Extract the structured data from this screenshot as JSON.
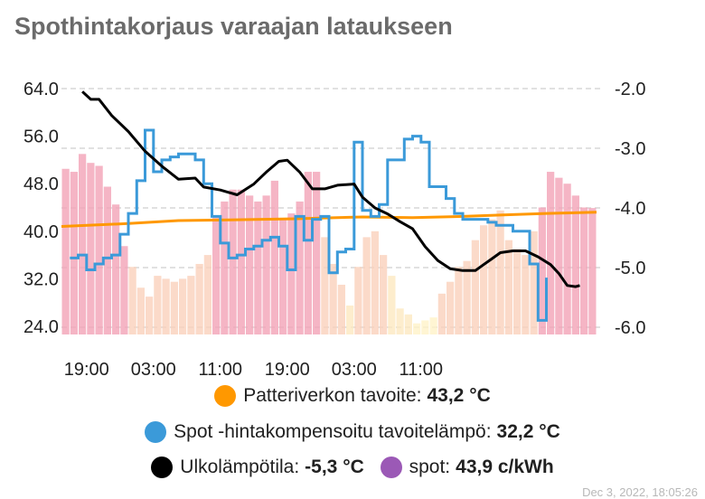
{
  "card": {
    "title": "Spothintakorjaus varaajan lataukseen",
    "footer": "Dec 3, 2022, 18:05:26"
  },
  "chart_data": {
    "type": "line",
    "x_ticks": [
      "19:00",
      "03:00",
      "11:00",
      "19:00",
      "03:00",
      "11:00"
    ],
    "x_range": [
      0,
      64
    ],
    "x_tick_positions": [
      3,
      11,
      19,
      27,
      35,
      43
    ],
    "left_axis": {
      "ticks": [
        "64.0",
        "56.0",
        "48.0",
        "40.0",
        "32.0",
        "24.0"
      ],
      "range": [
        24,
        64
      ]
    },
    "right_axis": {
      "ticks": [
        "-2.0",
        "-3.0",
        "-4.0",
        "-5.0",
        "-6.0"
      ],
      "range": [
        -6,
        -2
      ]
    },
    "grid": true,
    "series": [
      {
        "name": "spot",
        "unit": "c/kWh",
        "axis": "left",
        "style": "bars",
        "values": [
          50.5,
          50,
          53,
          51.5,
          51,
          47.5,
          44.5,
          37.5,
          34,
          30.5,
          29,
          32.5,
          32,
          31.5,
          32,
          32.5,
          34.5,
          36,
          42.5,
          45,
          47,
          47,
          46,
          45,
          46,
          48.5,
          42,
          43,
          45,
          50,
          50,
          39,
          34.5,
          31,
          27.5,
          34,
          39,
          40,
          36,
          32.5,
          27,
          26,
          24.5,
          25,
          25.5,
          29.5,
          31.5,
          34,
          35,
          38.5,
          41,
          42,
          43.5,
          38.5,
          37,
          36,
          40,
          44,
          50,
          49,
          48,
          46,
          44,
          43.9
        ],
        "colors": [
          "#f2a3b6",
          "#f2a3b6",
          "#f2a3b6",
          "#f2a3b6",
          "#f2a3b6",
          "#f2a3b6",
          "#f2a3b6",
          "#f2a3b6",
          "#fad1bb",
          "#fad1bb",
          "#fad1bb",
          "#fad1bb",
          "#fad1bb",
          "#fad1bb",
          "#fad1bb",
          "#fad1bb",
          "#fad1bb",
          "#fad1bb",
          "#f2a3b6",
          "#f2a3b6",
          "#f2a3b6",
          "#f2a3b6",
          "#f2a3b6",
          "#f2a3b6",
          "#f2a3b6",
          "#f2a3b6",
          "#f2a3b6",
          "#f2a3b6",
          "#f2a3b6",
          "#f2a3b6",
          "#f2a3b6",
          "#fad1bb",
          "#fad1bb",
          "#fad1bb",
          "#fde8c0",
          "#fad1bb",
          "#fad1bb",
          "#fad1bb",
          "#fad1bb",
          "#fde8c0",
          "#fde8c0",
          "#fde8c0",
          "#fff3c8",
          "#fff3c8",
          "#fff3c8",
          "#fad1bb",
          "#fad1bb",
          "#fad1bb",
          "#fad1bb",
          "#fad1bb",
          "#fad1bb",
          "#fad1bb",
          "#fad1bb",
          "#fad1bb",
          "#fad1bb",
          "#fad1bb",
          "#fad1bb",
          "#f2a3b6",
          "#f2a3b6",
          "#f2a3b6",
          "#f2a3b6",
          "#f2a3b6",
          "#f2a3b6",
          "#f2a3b6"
        ]
      },
      {
        "name": "Patteriverkon tavoite",
        "unit": "°C",
        "axis": "left",
        "style": "line",
        "color": "#ff9800",
        "points": [
          [
            0,
            40.8
          ],
          [
            8,
            41.3
          ],
          [
            14,
            41.8
          ],
          [
            20,
            41.9
          ],
          [
            28,
            42.1
          ],
          [
            36,
            42.4
          ],
          [
            42,
            42.3
          ],
          [
            48,
            42.5
          ],
          [
            54,
            42.8
          ],
          [
            58,
            43.0
          ],
          [
            64,
            43.2
          ]
        ]
      },
      {
        "name": "Spot -hintakompensoitu tavoitelämpö",
        "unit": "°C",
        "axis": "left",
        "style": "step",
        "color": "#3b9ad9",
        "points": [
          [
            1,
            35.5
          ],
          [
            2,
            36
          ],
          [
            3,
            33.5
          ],
          [
            4,
            34.5
          ],
          [
            5,
            35.5
          ],
          [
            6,
            36
          ],
          [
            7,
            39.5
          ],
          [
            8,
            43
          ],
          [
            9,
            48.5
          ],
          [
            10,
            57
          ],
          [
            11,
            50
          ],
          [
            12,
            52
          ],
          [
            13,
            52.5
          ],
          [
            14,
            53
          ],
          [
            15,
            53
          ],
          [
            16,
            52
          ],
          [
            17,
            48
          ],
          [
            18,
            42.5
          ],
          [
            19,
            38
          ],
          [
            20,
            35.5
          ],
          [
            21,
            36
          ],
          [
            22,
            37
          ],
          [
            23,
            37.5
          ],
          [
            24,
            38.5
          ],
          [
            25,
            39
          ],
          [
            26,
            37.5
          ],
          [
            27,
            33.5
          ],
          [
            28,
            42.5
          ],
          [
            29,
            38.5
          ],
          [
            30,
            42
          ],
          [
            31,
            42.5
          ],
          [
            32,
            33
          ],
          [
            33,
            36.5
          ],
          [
            34,
            37
          ],
          [
            35,
            55
          ],
          [
            36,
            43.5
          ],
          [
            37,
            42.5
          ],
          [
            38,
            44.5
          ],
          [
            39,
            52
          ],
          [
            40,
            52
          ],
          [
            41,
            55.5
          ],
          [
            42,
            56
          ],
          [
            43,
            55
          ],
          [
            44,
            47.5
          ],
          [
            45,
            47.5
          ],
          [
            46,
            45.5
          ],
          [
            47,
            43
          ],
          [
            48,
            42
          ],
          [
            49,
            42
          ],
          [
            50,
            42
          ],
          [
            51,
            41.5
          ],
          [
            52,
            41
          ],
          [
            53,
            41
          ],
          [
            54,
            40
          ],
          [
            55,
            40
          ],
          [
            56,
            34.5
          ],
          [
            57,
            25
          ],
          [
            58,
            32.2
          ]
        ]
      },
      {
        "name": "Ulkolämpötila",
        "unit": "°C",
        "axis": "right",
        "style": "line",
        "color": "#000000",
        "points": [
          [
            2.5,
            -2.05
          ],
          [
            3.5,
            -2.18
          ],
          [
            4.5,
            -2.18
          ],
          [
            6,
            -2.45
          ],
          [
            8,
            -2.72
          ],
          [
            10,
            -3.05
          ],
          [
            12,
            -3.3
          ],
          [
            14,
            -3.52
          ],
          [
            16,
            -3.5
          ],
          [
            17,
            -3.65
          ],
          [
            19,
            -3.7
          ],
          [
            21,
            -3.78
          ],
          [
            23,
            -3.6
          ],
          [
            24.5,
            -3.4
          ],
          [
            26,
            -3.22
          ],
          [
            27,
            -3.2
          ],
          [
            28.5,
            -3.4
          ],
          [
            30,
            -3.68
          ],
          [
            31.5,
            -3.68
          ],
          [
            33,
            -3.62
          ],
          [
            35,
            -3.6
          ],
          [
            36,
            -3.82
          ],
          [
            37.5,
            -4.0
          ],
          [
            39,
            -4.1
          ],
          [
            40.5,
            -4.23
          ],
          [
            42,
            -4.35
          ],
          [
            43.5,
            -4.65
          ],
          [
            45,
            -4.88
          ],
          [
            46.5,
            -5.02
          ],
          [
            48,
            -5.05
          ],
          [
            49.5,
            -5.05
          ],
          [
            50.5,
            -4.95
          ],
          [
            51.5,
            -4.85
          ],
          [
            52.5,
            -4.75
          ],
          [
            54,
            -4.72
          ],
          [
            55.5,
            -4.72
          ],
          [
            57,
            -4.82
          ],
          [
            58.5,
            -4.95
          ],
          [
            59.5,
            -5.1
          ],
          [
            60.5,
            -5.3
          ],
          [
            61.5,
            -5.32
          ],
          [
            62,
            -5.3
          ]
        ]
      }
    ]
  },
  "legend": [
    {
      "label": "Patteriverkon tavoite:",
      "value": "43,2 °C",
      "color": "#ff9800"
    },
    {
      "label": "Spot -hintakompensoitu tavoitelämpö:",
      "value": "32,2 °C",
      "color": "#3b9ad9"
    },
    {
      "label": "Ulkolämpötila:",
      "value": "-5,3 °C",
      "color": "#000000"
    },
    {
      "label": "spot:",
      "value": "43,9 c/kWh",
      "color": "#9b59b6"
    }
  ]
}
